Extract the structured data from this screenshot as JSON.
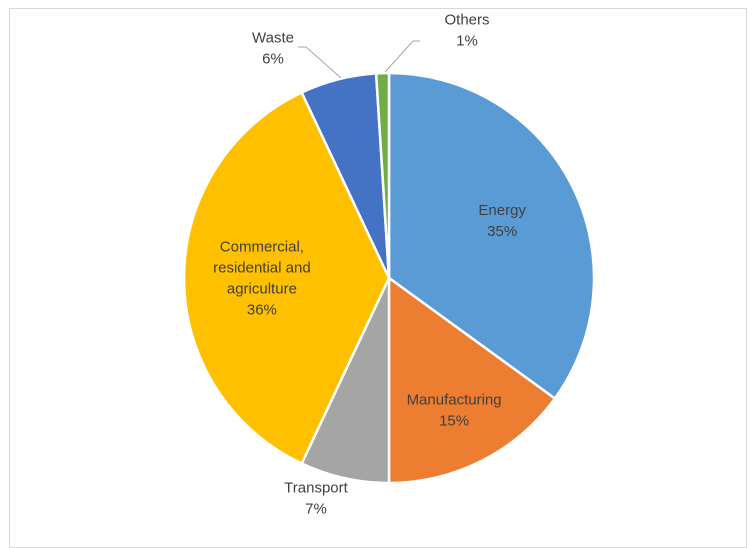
{
  "chart_data": {
    "type": "pie",
    "title": "",
    "slices": [
      {
        "name": "Energy",
        "value": 35,
        "label": "35%",
        "color": "#5B9BD5"
      },
      {
        "name": "Manufacturing",
        "value": 15,
        "label": "15%",
        "color": "#ED7D31"
      },
      {
        "name": "Transport",
        "value": 7,
        "label": "7%",
        "color": "#A5A5A5"
      },
      {
        "name": "Commercial, residential and agriculture",
        "value": 36,
        "label": "36%",
        "color": "#FFC000"
      },
      {
        "name": "Waste",
        "value": 6,
        "label": "6%",
        "color": "#4472C4"
      },
      {
        "name": "Others",
        "value": 1,
        "label": "1%",
        "color": "#70AD47"
      }
    ]
  }
}
